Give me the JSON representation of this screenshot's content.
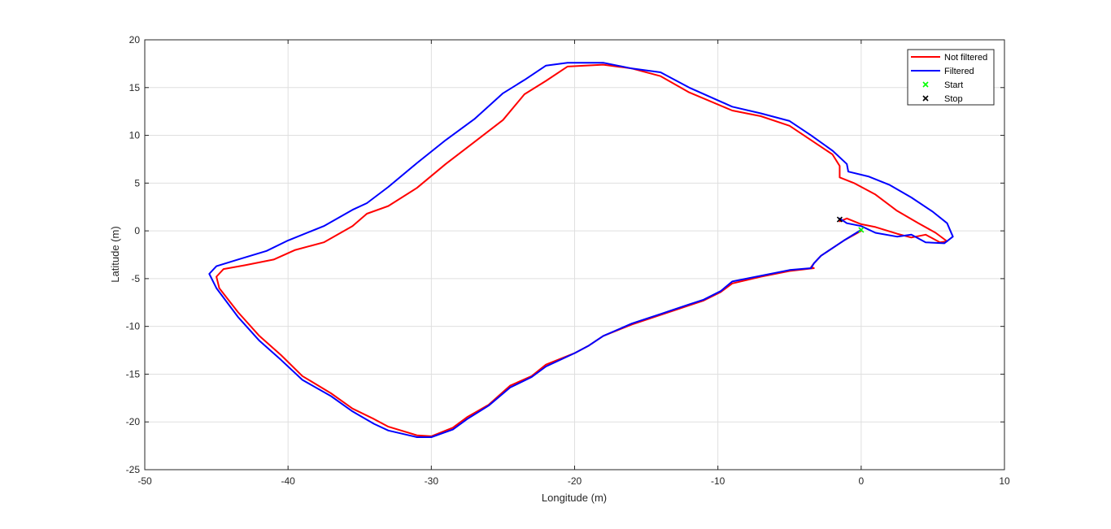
{
  "chart_data": {
    "type": "line",
    "title": "",
    "xlabel": "Longitude (m)",
    "ylabel": "Latitude (m)",
    "xlim": [
      -50,
      10
    ],
    "ylim": [
      -25,
      20
    ],
    "xticks": [
      -50,
      -40,
      -30,
      -20,
      -10,
      0,
      10
    ],
    "yticks": [
      -25,
      -20,
      -15,
      -10,
      -5,
      0,
      5,
      10,
      15,
      20
    ],
    "grid": true,
    "legend_position": "top-right",
    "series": [
      {
        "name": "Not filtered",
        "color": "#ff0000",
        "kind": "line",
        "x": [
          0,
          -1.2,
          -2.0,
          -2.8,
          -3.3,
          -3.5,
          -3.3,
          -5.0,
          -7.0,
          -9.0,
          -9.8,
          -11.0,
          -12.0,
          -14.0,
          -16.0,
          -18.0,
          -19.0,
          -20.0,
          -22.0,
          -23.0,
          -24.5,
          -26.0,
          -27.5,
          -28.5,
          -30.0,
          -31.0,
          -33.0,
          -34.0,
          -35.5,
          -37.0,
          -39.0,
          -40.5,
          -42.0,
          -43.5,
          -44.8,
          -45.0,
          -44.5,
          -43.0,
          -41.0,
          -39.5,
          -37.5,
          -35.5,
          -34.5,
          -33.0,
          -31.0,
          -29.0,
          -27.0,
          -25.0,
          -23.5,
          -22.0,
          -20.5,
          -18.0,
          -16.0,
          -14.0,
          -12.0,
          -9.0,
          -7.0,
          -5.0,
          -3.5,
          -2.0,
          -1.5,
          -1.5,
          -0.5,
          1.0,
          2.5,
          4.0,
          5.2,
          6.0,
          5.5,
          4.5,
          3.5,
          2.5,
          1.0,
          0,
          -1.0,
          -1.5
        ],
        "y": [
          0,
          -1.0,
          -1.8,
          -2.6,
          -3.4,
          -3.8,
          -3.9,
          -4.2,
          -4.8,
          -5.5,
          -6.4,
          -7.3,
          -7.8,
          -8.8,
          -9.8,
          -11.0,
          -12.0,
          -12.8,
          -14.0,
          -15.2,
          -16.2,
          -18.2,
          -19.5,
          -20.6,
          -21.5,
          -21.4,
          -20.5,
          -19.7,
          -18.6,
          -17.0,
          -15.2,
          -13.0,
          -11.0,
          -8.5,
          -6.0,
          -4.8,
          -4.0,
          -3.6,
          -3.0,
          -2.0,
          -1.2,
          0.5,
          1.8,
          2.6,
          4.5,
          7.0,
          9.3,
          11.6,
          14.3,
          15.7,
          17.2,
          17.4,
          17.0,
          16.2,
          14.5,
          12.6,
          12.0,
          11.0,
          9.5,
          8.0,
          6.8,
          5.6,
          5.0,
          3.8,
          2.1,
          0.8,
          -0.2,
          -1.1,
          -1.2,
          -0.4,
          -0.7,
          -0.3,
          0.4,
          0.7,
          1.3,
          1.0
        ]
      },
      {
        "name": "Filtered",
        "color": "#0000ff",
        "kind": "line",
        "x": [
          0,
          -1.2,
          -2.0,
          -2.8,
          -3.3,
          -3.5,
          -5.0,
          -7.0,
          -9.0,
          -9.8,
          -11.0,
          -12.0,
          -14.0,
          -16.0,
          -18.0,
          -19.0,
          -20.0,
          -22.0,
          -23.0,
          -24.5,
          -26.0,
          -27.5,
          -28.5,
          -30.0,
          -31.0,
          -33.0,
          -34.0,
          -35.5,
          -37.0,
          -39.0,
          -40.5,
          -42.0,
          -43.5,
          -45.0,
          -45.5,
          -45.0,
          -43.5,
          -41.5,
          -40.0,
          -37.5,
          -35.5,
          -34.5,
          -33.0,
          -31.0,
          -29.0,
          -27.0,
          -25.0,
          -23.5,
          -22.0,
          -20.5,
          -18.0,
          -16.0,
          -14.0,
          -12.0,
          -9.0,
          -7.0,
          -5.0,
          -3.5,
          -2.0,
          -1.0,
          -0.9,
          0.5,
          2.0,
          3.5,
          5.0,
          6.0,
          6.4,
          5.8,
          4.5,
          3.5,
          2.5,
          1.0,
          0,
          -1.0,
          -1.5
        ],
        "y": [
          0.1,
          -1.0,
          -1.8,
          -2.6,
          -3.4,
          -3.9,
          -4.1,
          -4.7,
          -5.3,
          -6.3,
          -7.2,
          -7.7,
          -8.7,
          -9.7,
          -11.0,
          -12.0,
          -12.8,
          -14.2,
          -15.3,
          -16.4,
          -18.3,
          -19.7,
          -20.8,
          -21.6,
          -21.6,
          -20.9,
          -20.2,
          -18.9,
          -17.3,
          -15.6,
          -13.5,
          -11.5,
          -9.0,
          -6.0,
          -4.5,
          -3.7,
          -3.0,
          -2.1,
          -1.0,
          0.5,
          2.2,
          2.9,
          4.6,
          7.1,
          9.5,
          11.7,
          14.4,
          15.8,
          17.3,
          17.6,
          17.6,
          17.0,
          16.6,
          15.0,
          13.0,
          12.3,
          11.5,
          10.0,
          8.4,
          7.0,
          6.2,
          5.7,
          4.8,
          3.5,
          2.0,
          0.8,
          -0.6,
          -1.3,
          -1.2,
          -0.4,
          -0.6,
          -0.2,
          0.5,
          0.8,
          1.3
        ]
      }
    ],
    "markers": [
      {
        "name": "Start",
        "x": 0,
        "y": 0.1,
        "symbol": "x",
        "color": "#00ff00"
      },
      {
        "name": "Stop",
        "x": -1.5,
        "y": 1.2,
        "symbol": "x",
        "color": "#000000"
      }
    ]
  }
}
